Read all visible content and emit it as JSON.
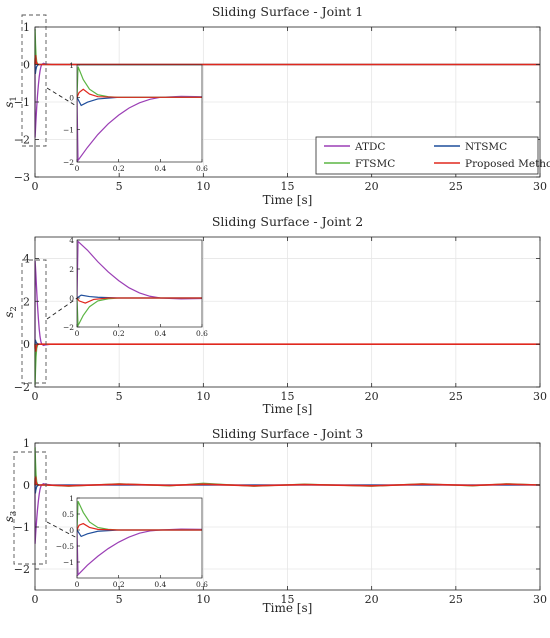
{
  "chart_data": [
    {
      "type": "line",
      "title": "Sliding Surface - Joint 1",
      "xlabel": "Time [s]",
      "ylabel": "s",
      "ylabel_sub": "1",
      "xlim": [
        0,
        30
      ],
      "ylim": [
        -3,
        1
      ],
      "xticks": [
        0,
        5,
        10,
        15,
        20,
        25,
        30
      ],
      "yticks": [
        -3,
        -2,
        -1,
        0,
        1
      ],
      "grid": true,
      "legend": {
        "position": "lower-right",
        "columns": 2
      },
      "series": [
        {
          "name": "ATDC",
          "color": "#9b3fb5",
          "x": [
            0,
            0.005,
            0.05,
            0.1,
            0.15,
            0.2,
            0.25,
            0.3,
            0.35,
            0.4,
            0.5,
            0.6,
            1,
            30
          ],
          "y": [
            0,
            -1.95,
            -1.55,
            -1.15,
            -0.82,
            -0.55,
            -0.33,
            -0.17,
            -0.06,
            0.0,
            0.03,
            0.02,
            0,
            0
          ]
        },
        {
          "name": "NTSMC",
          "color": "#1f4e9c",
          "x": [
            0,
            0.02,
            0.05,
            0.1,
            0.2,
            0.6,
            30
          ],
          "y": [
            0,
            -0.25,
            -0.15,
            -0.05,
            0,
            0,
            0
          ]
        },
        {
          "name": "FTSMC",
          "color": "#5cb544",
          "x": [
            0,
            0.005,
            0.03,
            0.06,
            0.1,
            0.15,
            0.2,
            0.6,
            30
          ],
          "y": [
            0,
            0.95,
            0.55,
            0.25,
            0.08,
            0.02,
            0,
            0,
            0
          ]
        },
        {
          "name": "Proposed Method",
          "color": "#e0281e",
          "x": [
            0,
            0.01,
            0.03,
            0.06,
            0.1,
            0.2,
            0.6,
            30
          ],
          "y": [
            0,
            0.15,
            0.25,
            0.1,
            0.02,
            0,
            0,
            0
          ]
        }
      ],
      "inset": {
        "xlim": [
          0,
          0.6
        ],
        "ylim": [
          -2,
          1
        ],
        "xticks": [
          0,
          0.2,
          0.4,
          0.6
        ],
        "xticklabels": [
          "0",
          "0.2",
          "0.4",
          "0.6"
        ],
        "yticks": [
          -2,
          -1,
          0,
          1
        ],
        "yticklabels": [
          "-2",
          "-1",
          "0",
          "1"
        ]
      }
    },
    {
      "type": "line",
      "title": "Sliding Surface - Joint 2",
      "xlabel": "Time [s]",
      "ylabel": "s",
      "ylabel_sub": "2",
      "xlim": [
        0,
        30
      ],
      "ylim": [
        -2,
        5
      ],
      "xticks": [
        0,
        5,
        10,
        15,
        20,
        25,
        30
      ],
      "yticks": [
        -2,
        0,
        2,
        4
      ],
      "grid": true,
      "series": [
        {
          "name": "ATDC",
          "color": "#9b3fb5",
          "x": [
            0,
            0.005,
            0.05,
            0.1,
            0.15,
            0.2,
            0.25,
            0.3,
            0.35,
            0.4,
            0.5,
            0.6,
            1,
            30
          ],
          "y": [
            0,
            3.9,
            3.3,
            2.5,
            1.8,
            1.2,
            0.7,
            0.35,
            0.12,
            0.0,
            -0.06,
            -0.04,
            0,
            0
          ]
        },
        {
          "name": "NTSMC",
          "color": "#1f4e9c",
          "x": [
            0,
            0.02,
            0.06,
            0.1,
            0.2,
            0.6,
            30
          ],
          "y": [
            0,
            0.2,
            0.1,
            0.05,
            0,
            0,
            0
          ]
        },
        {
          "name": "FTSMC",
          "color": "#5cb544",
          "x": [
            0,
            0.005,
            0.03,
            0.06,
            0.1,
            0.15,
            0.2,
            0.6,
            30
          ],
          "y": [
            0,
            -1.9,
            -1.2,
            -0.6,
            -0.2,
            -0.05,
            0,
            0,
            0
          ]
        },
        {
          "name": "Proposed Method",
          "color": "#e0281e",
          "x": [
            0,
            0.01,
            0.04,
            0.08,
            0.15,
            0.6,
            30
          ],
          "y": [
            0,
            -0.2,
            -0.35,
            -0.1,
            0,
            0,
            0
          ]
        }
      ],
      "inset": {
        "xlim": [
          0,
          0.6
        ],
        "ylim": [
          -2,
          4
        ],
        "xticks": [
          0,
          0.2,
          0.4,
          0.6
        ],
        "xticklabels": [
          "0",
          "0.2",
          "0.4",
          "0.6"
        ],
        "yticks": [
          -2,
          0,
          2,
          4
        ],
        "yticklabels": [
          "-2",
          "0",
          "2",
          "4"
        ]
      }
    },
    {
      "type": "line",
      "title": "Sliding Surface - Joint 3",
      "xlabel": "Time [s]",
      "ylabel": "s",
      "ylabel_sub": "3",
      "xlim": [
        0,
        30
      ],
      "ylim": [
        -2.5,
        1
      ],
      "xticks": [
        0,
        5,
        10,
        15,
        20,
        25,
        30
      ],
      "yticks": [
        -2,
        -1,
        0,
        1
      ],
      "yticklabels": [
        "-2",
        "-1",
        "0",
        "1"
      ],
      "grid": true,
      "series": [
        {
          "name": "ATDC",
          "color": "#9b3fb5",
          "x": [
            0,
            0.005,
            0.05,
            0.1,
            0.15,
            0.2,
            0.25,
            0.3,
            0.35,
            0.4,
            0.5,
            0.6,
            1,
            30
          ],
          "y": [
            0,
            -1.4,
            -1.1,
            -0.82,
            -0.58,
            -0.38,
            -0.22,
            -0.1,
            -0.03,
            0.0,
            0.03,
            0.02,
            0,
            0
          ]
        },
        {
          "name": "NTSMC",
          "color": "#1f4e9c",
          "x": [
            0,
            0.02,
            0.05,
            0.1,
            0.2,
            0.6,
            30
          ],
          "y": [
            0,
            -0.2,
            -0.12,
            -0.04,
            0,
            0,
            0
          ]
        },
        {
          "name": "FTSMC",
          "color": "#5cb544",
          "x": [
            0,
            0.005,
            0.03,
            0.06,
            0.1,
            0.15,
            0.2,
            0.6,
            2,
            5,
            8,
            10,
            13,
            16,
            20,
            23,
            26,
            28,
            30
          ],
          "y": [
            0,
            0.9,
            0.55,
            0.25,
            0.08,
            0.02,
            0,
            0,
            -0.03,
            0.03,
            -0.02,
            0.04,
            -0.03,
            0.02,
            -0.03,
            0.03,
            -0.02,
            0.03,
            0
          ]
        },
        {
          "name": "Proposed Method",
          "color": "#e0281e",
          "x": [
            0,
            0.01,
            0.03,
            0.06,
            0.1,
            0.2,
            0.6,
            2,
            5,
            8,
            10,
            13,
            16,
            20,
            23,
            26,
            28,
            30
          ],
          "y": [
            0,
            0.15,
            0.2,
            0.08,
            0.02,
            0,
            0,
            -0.02,
            0.02,
            -0.01,
            0.02,
            -0.02,
            0.01,
            -0.02,
            0.02,
            -0.01,
            0.02,
            0
          ]
        }
      ],
      "inset": {
        "xlim": [
          0,
          0.6
        ],
        "ylim": [
          -1.5,
          1
        ],
        "xticks": [
          0,
          0.2,
          0.4,
          0.6
        ],
        "xticklabels": [
          "0",
          "0.2",
          "0.4",
          "0.6"
        ],
        "yticks": [
          -1,
          -0.5,
          0,
          0.5,
          1
        ],
        "yticklabels": [
          "-1",
          "-0.5",
          "0",
          "0.5",
          "1"
        ]
      }
    }
  ]
}
